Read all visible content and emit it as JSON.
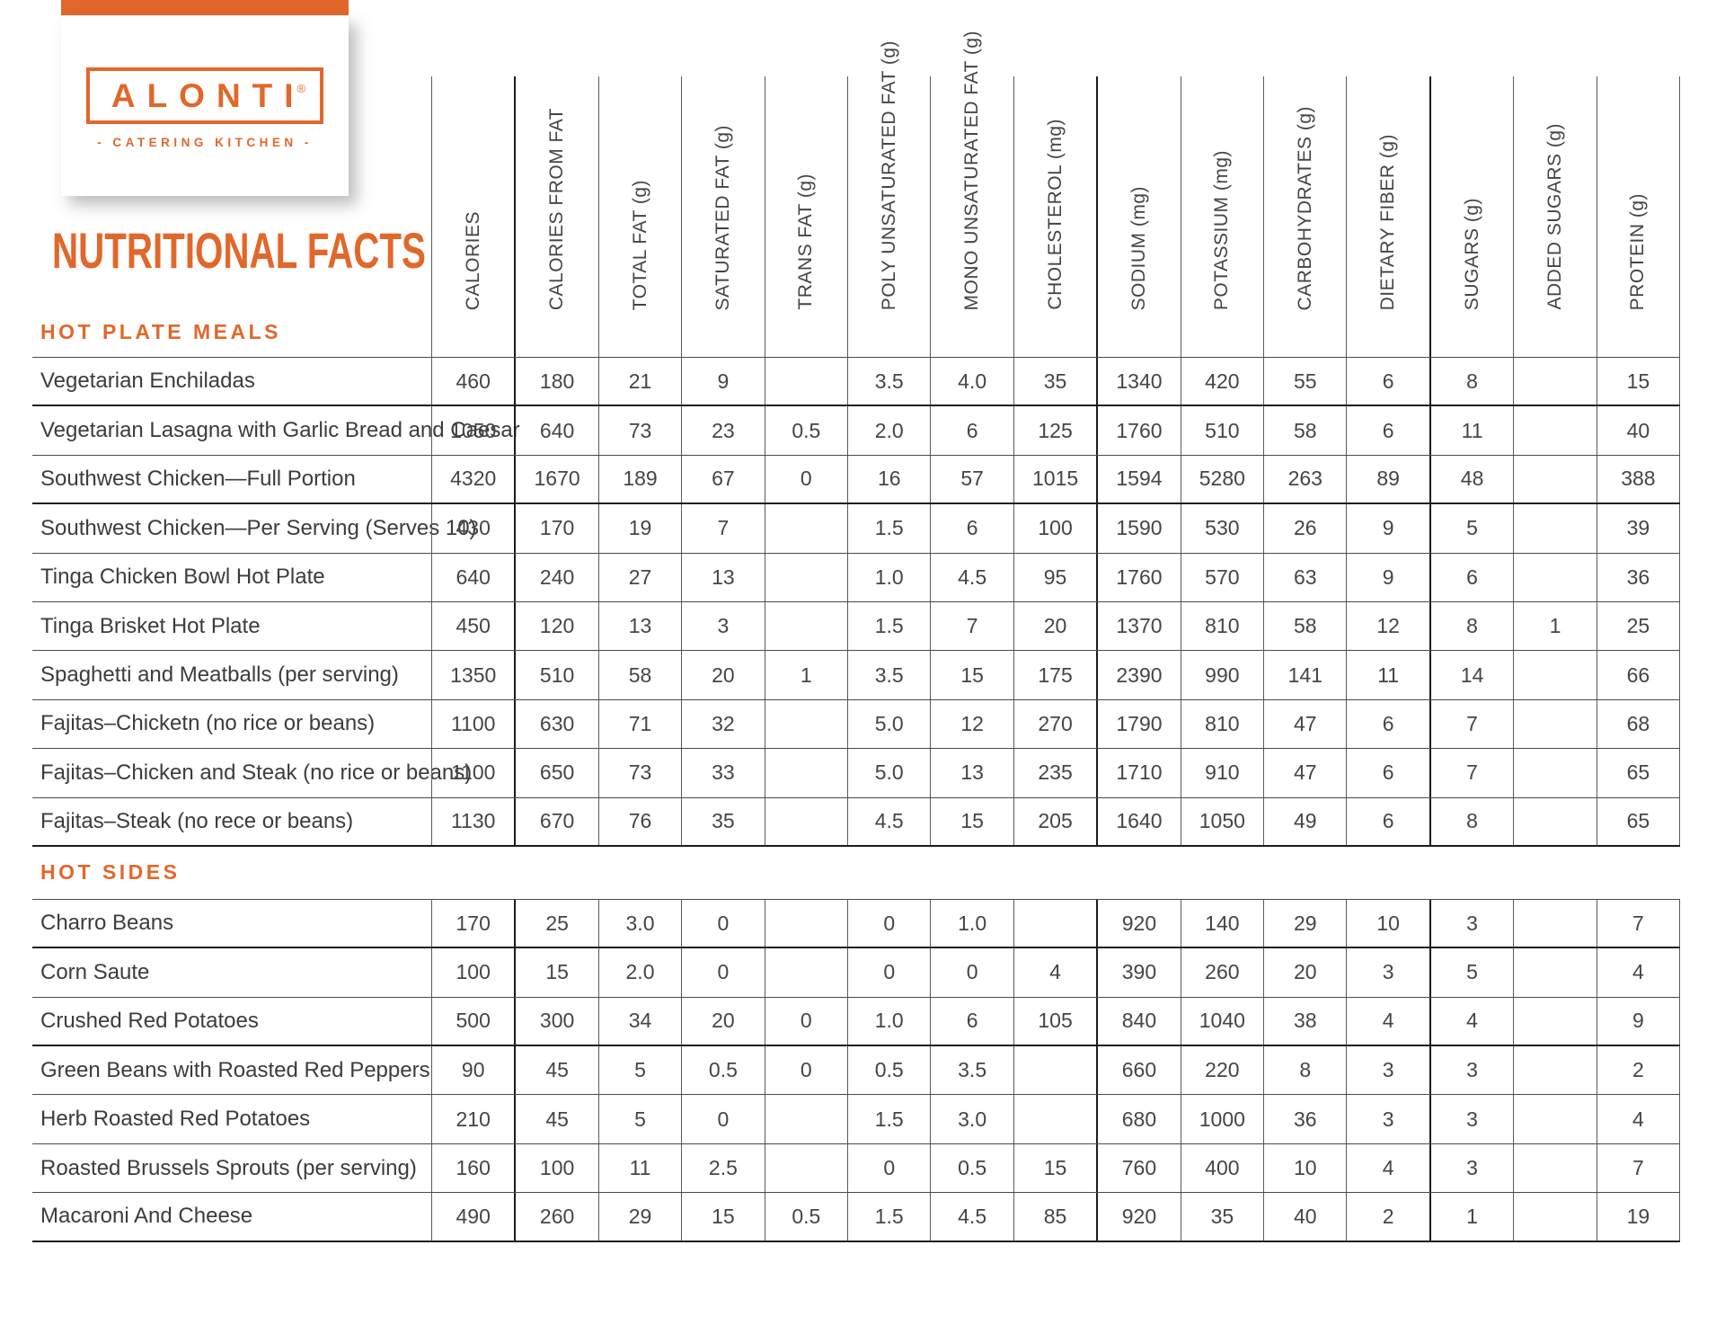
{
  "colors": {
    "accent": "#E2672A"
  },
  "brand": {
    "name": "ALONTI",
    "registered": "®",
    "tagline": "- CATERING KITCHEN -"
  },
  "page": {
    "title": "NUTRITIONAL FACTS"
  },
  "table": {
    "columns": [
      {
        "label": "CALORIES",
        "thickLeft": false
      },
      {
        "label": "CALORIES FROM FAT",
        "thickLeft": true
      },
      {
        "label": "TOTAL FAT (g)",
        "thickLeft": false
      },
      {
        "label": "SATURATED FAT (g)",
        "thickLeft": false
      },
      {
        "label": "TRANS FAT (g)",
        "thickLeft": false
      },
      {
        "label": "POLY UNSATURATED FAT (g)",
        "thickLeft": false
      },
      {
        "label": "MONO UNSATURATED FAT (g)",
        "thickLeft": false
      },
      {
        "label": "CHOLESTEROL (mg)",
        "thickLeft": false
      },
      {
        "label": "SODIUM (mg)",
        "thickLeft": true
      },
      {
        "label": "POTASSIUM (mg)",
        "thickLeft": false
      },
      {
        "label": "CARBOHYDRATES (g)",
        "thickLeft": false
      },
      {
        "label": "DIETARY FIBER (g)",
        "thickLeft": false
      },
      {
        "label": "SUGARS (g)",
        "thickLeft": true
      },
      {
        "label": "ADDED SUGARS (g)",
        "thickLeft": false
      },
      {
        "label": "PROTEIN (g)",
        "thickLeft": false
      }
    ],
    "sections": [
      {
        "title": "HOT PLATE MEALS",
        "rows": [
          {
            "label": "Vegetarian Enchiladas",
            "thickBottom": true,
            "values": [
              "460",
              "180",
              "21",
              "9",
              "",
              "3.5",
              "4.0",
              "35",
              "1340",
              "420",
              "55",
              "6",
              "8",
              "",
              "15"
            ]
          },
          {
            "label": "Vegetarian Lasagna with Garlic Bread and Caesar",
            "thickBottom": false,
            "values": [
              "1050",
              "640",
              "73",
              "23",
              "0.5",
              "2.0",
              "6",
              "125",
              "1760",
              "510",
              "58",
              "6",
              "11",
              "",
              "40"
            ]
          },
          {
            "label": "Southwest Chicken—Full Portion",
            "thickBottom": true,
            "values": [
              "4320",
              "1670",
              "189",
              "67",
              "0",
              "16",
              "57",
              "1015",
              "1594",
              "5280",
              "263",
              "89",
              "48",
              "",
              "388"
            ]
          },
          {
            "label": "Southwest Chicken—Per Serving (Serves 10)",
            "thickBottom": false,
            "values": [
              "430",
              "170",
              "19",
              "7",
              "",
              "1.5",
              "6",
              "100",
              "1590",
              "530",
              "26",
              "9",
              "5",
              "",
              "39"
            ]
          },
          {
            "label": "Tinga Chicken Bowl Hot Plate",
            "thickBottom": false,
            "values": [
              "640",
              "240",
              "27",
              "13",
              "",
              "1.0",
              "4.5",
              "95",
              "1760",
              "570",
              "63",
              "9",
              "6",
              "",
              "36"
            ]
          },
          {
            "label": "Tinga Brisket Hot Plate",
            "thickBottom": false,
            "values": [
              "450",
              "120",
              "13",
              "3",
              "",
              "1.5",
              "7",
              "20",
              "1370",
              "810",
              "58",
              "12",
              "8",
              "1",
              "25"
            ]
          },
          {
            "label": "Spaghetti and Meatballs (per serving)",
            "thickBottom": false,
            "values": [
              "1350",
              "510",
              "58",
              "20",
              "1",
              "3.5",
              "15",
              "175",
              "2390",
              "990",
              "141",
              "11",
              "14",
              "",
              "66"
            ]
          },
          {
            "label": "Fajitas–Chicketn (no rice or beans)",
            "thickBottom": false,
            "values": [
              "1100",
              "630",
              "71",
              "32",
              "",
              "5.0",
              "12",
              "270",
              "1790",
              "810",
              "47",
              "6",
              "7",
              "",
              "68"
            ]
          },
          {
            "label": "Fajitas–Chicken and Steak (no rice or beans)",
            "thickBottom": false,
            "values": [
              "1100",
              "650",
              "73",
              "33",
              "",
              "5.0",
              "13",
              "235",
              "1710",
              "910",
              "47",
              "6",
              "7",
              "",
              "65"
            ]
          },
          {
            "label": "Fajitas–Steak (no rece or beans)",
            "thickBottom": true,
            "values": [
              "1130",
              "670",
              "76",
              "35",
              "",
              "4.5",
              "15",
              "205",
              "1640",
              "1050",
              "49",
              "6",
              "8",
              "",
              "65"
            ]
          }
        ]
      },
      {
        "title": "HOT SIDES",
        "rows": [
          {
            "label": "Charro Beans",
            "thickBottom": true,
            "values": [
              "170",
              "25",
              "3.0",
              "0",
              "",
              "0",
              "1.0",
              "",
              "920",
              "140",
              "29",
              "10",
              "3",
              "",
              "7"
            ]
          },
          {
            "label": "Corn Saute",
            "thickBottom": false,
            "values": [
              "100",
              "15",
              "2.0",
              "0",
              "",
              "0",
              "0",
              "4",
              "390",
              "260",
              "20",
              "3",
              "5",
              "",
              "4"
            ]
          },
          {
            "label": "Crushed Red Potatoes",
            "thickBottom": true,
            "values": [
              "500",
              "300",
              "34",
              "20",
              "0",
              "1.0",
              "6",
              "105",
              "840",
              "1040",
              "38",
              "4",
              "4",
              "",
              "9"
            ]
          },
          {
            "label": "Green Beans with Roasted Red Peppers",
            "thickBottom": false,
            "values": [
              "90",
              "45",
              "5",
              "0.5",
              "0",
              "0.5",
              "3.5",
              "",
              "660",
              "220",
              "8",
              "3",
              "3",
              "",
              "2"
            ]
          },
          {
            "label": "Herb Roasted Red Potatoes",
            "thickBottom": false,
            "values": [
              "210",
              "45",
              "5",
              "0",
              "",
              "1.5",
              "3.0",
              "",
              "680",
              "1000",
              "36",
              "3",
              "3",
              "",
              "4"
            ]
          },
          {
            "label": "Roasted Brussels Sprouts (per serving)",
            "thickBottom": false,
            "values": [
              "160",
              "100",
              "11",
              "2.5",
              "",
              "0",
              "0.5",
              "15",
              "760",
              "400",
              "10",
              "4",
              "3",
              "",
              "7"
            ]
          },
          {
            "label": "Macaroni And Cheese",
            "thickBottom": true,
            "values": [
              "490",
              "260",
              "29",
              "15",
              "0.5",
              "1.5",
              "4.5",
              "85",
              "920",
              "35",
              "40",
              "2",
              "1",
              "",
              "19"
            ]
          }
        ]
      }
    ]
  }
}
